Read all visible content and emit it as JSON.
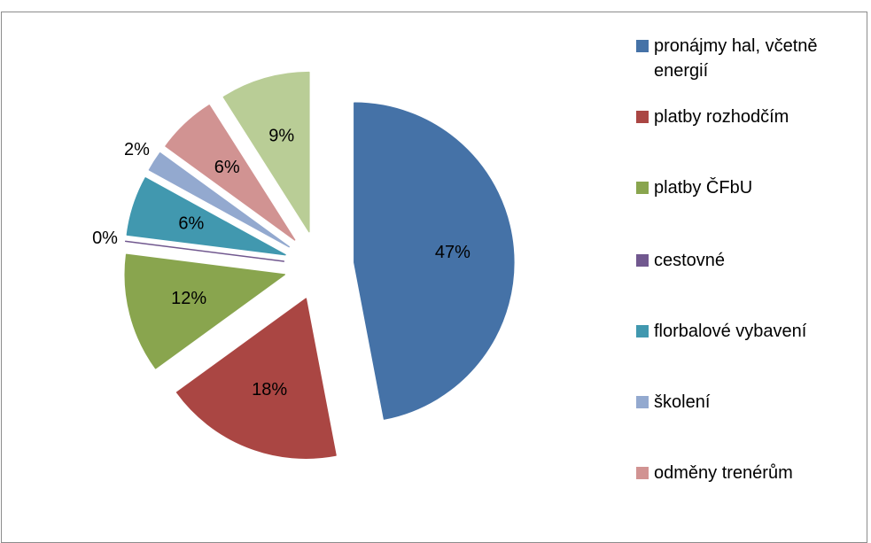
{
  "chart_data": {
    "type": "pie",
    "categories": [
      "pronájmy hal, včetně energií",
      "platby rozhodčím",
      "platby ČFbU",
      "cestovné",
      "florbalové vybavení",
      "školení",
      "odměny trenérům",
      null
    ],
    "values": [
      47,
      18,
      12,
      0,
      6,
      2,
      6,
      9
    ],
    "value_labels": [
      "47%",
      "18%",
      "12%",
      "0%",
      "6%",
      "2%",
      "6%",
      "9%"
    ],
    "colors": [
      "#4572a7",
      "#aa4643",
      "#89a54e",
      "#71588f",
      "#4198af",
      "#93a9cf",
      "#d19392",
      "#b9cd96"
    ],
    "legend": "right"
  }
}
